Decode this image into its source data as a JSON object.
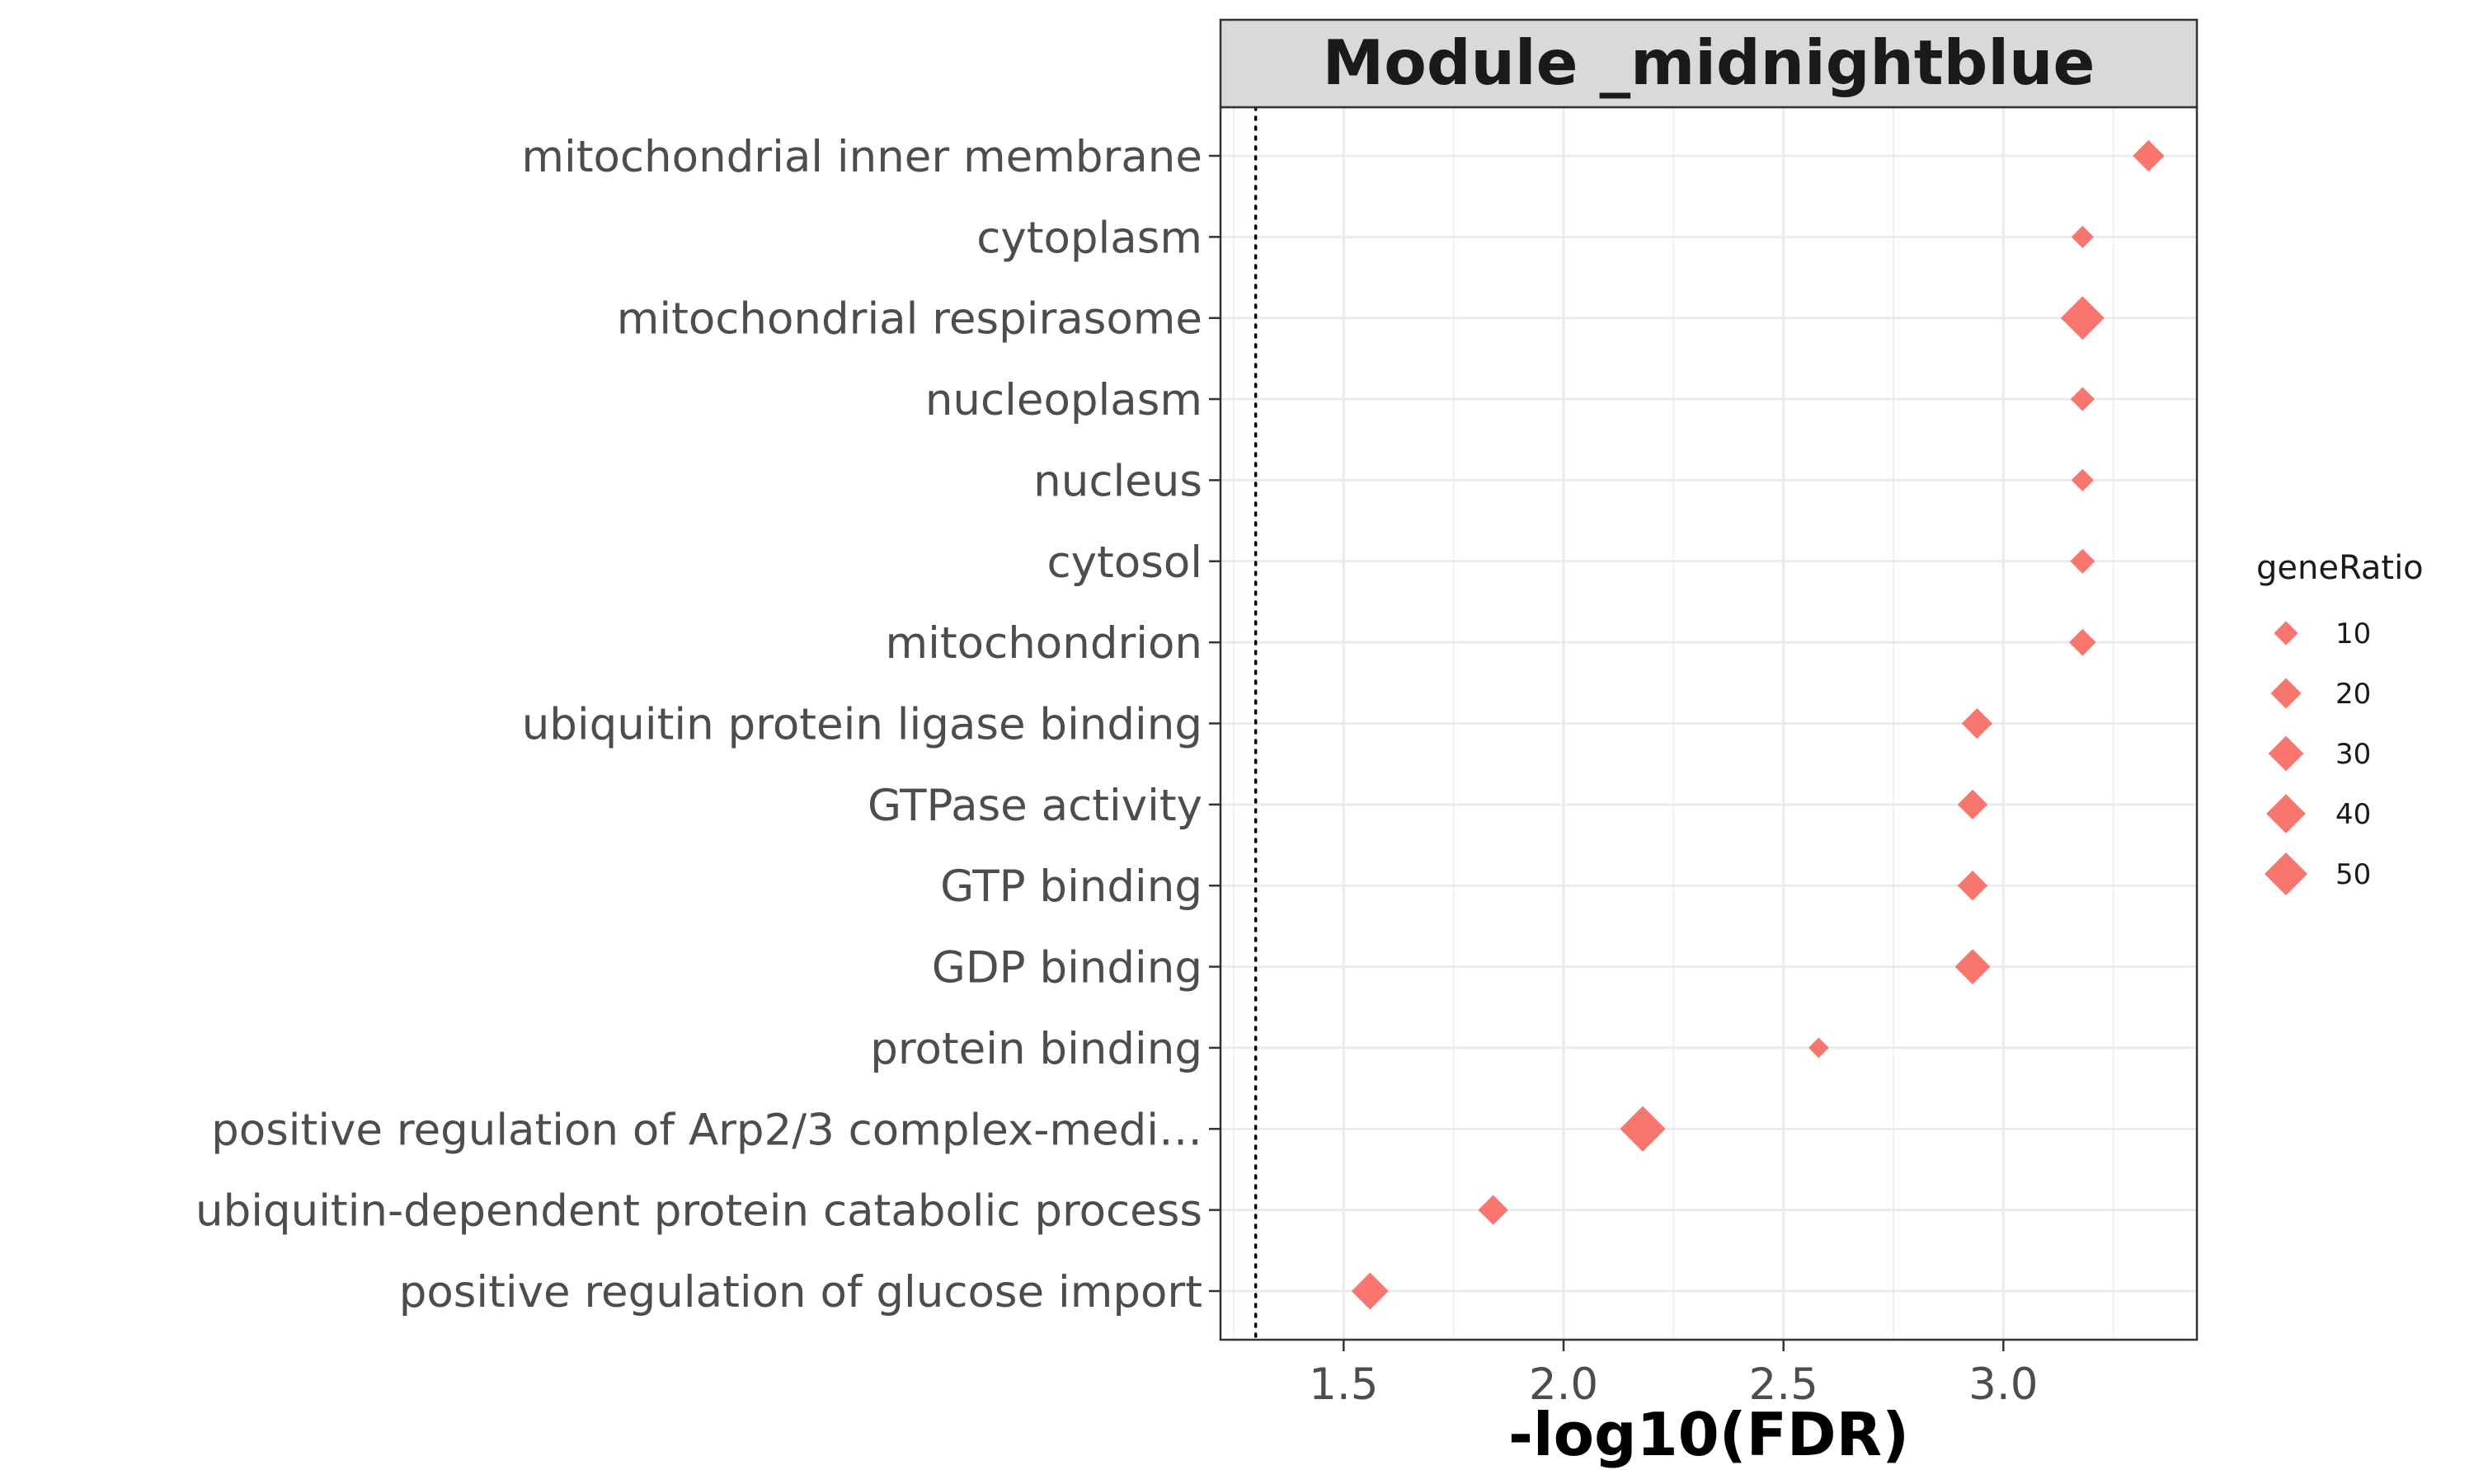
{
  "chart_data": {
    "type": "scatter",
    "title": "Module _midnightblue",
    "xlabel": "-log10(FDR)",
    "ylabel": "",
    "xlim": [
      1.22,
      3.44
    ],
    "x_ticks": [
      "1.5",
      "2.0",
      "2.5",
      "3.0"
    ],
    "x_tick_values": [
      1.5,
      2.0,
      2.5,
      3.0
    ],
    "reference_line_x": 1.3,
    "marker": "diamond",
    "color": "#F8766D",
    "grid": true,
    "legend": {
      "title": "geneRatio",
      "position": "right",
      "values": [
        10,
        20,
        30,
        40,
        50
      ],
      "labels": [
        "10",
        "20",
        "30",
        "40",
        "50"
      ]
    },
    "points": [
      {
        "term": "mitochondrial inner membrane",
        "x": 3.33,
        "size": 22
      },
      {
        "term": "cytoplasm",
        "x": 3.18,
        "size": 8
      },
      {
        "term": "mitochondrial respirasome",
        "x": 3.18,
        "size": 52
      },
      {
        "term": "nucleoplasm",
        "x": 3.18,
        "size": 10
      },
      {
        "term": "nucleus",
        "x": 3.18,
        "size": 8
      },
      {
        "term": "cytosol",
        "x": 3.18,
        "size": 11
      },
      {
        "term": "mitochondrion",
        "x": 3.18,
        "size": 14
      },
      {
        "term": "ubiquitin protein ligase binding",
        "x": 2.94,
        "size": 20
      },
      {
        "term": "GTPase activity",
        "x": 2.93,
        "size": 19
      },
      {
        "term": "GTP binding",
        "x": 2.93,
        "size": 19
      },
      {
        "term": "GDP binding",
        "x": 2.93,
        "size": 30
      },
      {
        "term": "protein binding",
        "x": 2.58,
        "size": 6
      },
      {
        "term": "positive regulation of Arp2/3 complex-medi…",
        "x": 2.18,
        "size": 58
      },
      {
        "term": "ubiquitin-dependent protein catabolic process",
        "x": 1.84,
        "size": 19
      },
      {
        "term": "positive regulation of glucose import",
        "x": 1.56,
        "size": 34
      }
    ]
  }
}
